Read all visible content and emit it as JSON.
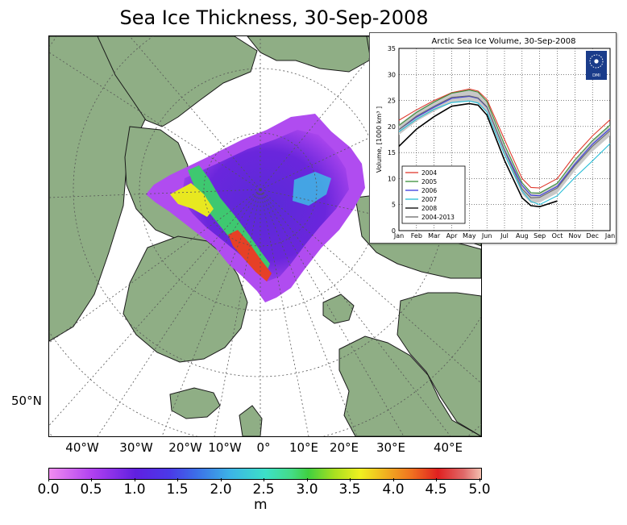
{
  "map": {
    "title": "Sea Ice Thickness, 30-Sep-2008",
    "lon_labels": [
      "40°W",
      "30°W",
      "20°W",
      "10°W",
      "0°",
      "10°E",
      "20°E",
      "30°E",
      "40°E"
    ],
    "lat_label": "50°N",
    "colors": {
      "land": "#8fae85",
      "ocean": "#ffffff",
      "grid": "#555555"
    }
  },
  "colorbar": {
    "ticks": [
      "0.0",
      "0.5",
      "1.0",
      "1.5",
      "2.0",
      "2.5",
      "3.0",
      "3.5",
      "4.0",
      "4.5",
      "5.0"
    ],
    "unit": "m"
  },
  "chart_data": {
    "type": "line",
    "title": "Arctic Sea Ice Volume, 30-Sep-2008",
    "ylabel": "Volume, [1000 km³ ]",
    "xlabel": "",
    "categories": [
      "Jan",
      "Feb",
      "Mar",
      "Apr",
      "May",
      "Jun",
      "Jul",
      "Aug",
      "Sep",
      "Oct",
      "Nov",
      "Dec",
      "Jan"
    ],
    "yticks": [
      "0",
      "5",
      "10",
      "15",
      "20",
      "25",
      "30",
      "35"
    ],
    "ylim": [
      0,
      35
    ],
    "x": [
      0,
      1,
      2,
      3,
      4,
      4.5,
      5,
      6,
      7,
      7.5,
      8,
      9,
      10,
      11,
      12
    ],
    "grid": true,
    "legend_position": "bottom-left",
    "logo_text": "DMI",
    "series": [
      {
        "name": "2004",
        "color": "#e03a2e",
        "values": [
          21.2,
          23.2,
          25.0,
          26.5,
          27.2,
          26.8,
          25.2,
          17.5,
          10.0,
          8.3,
          8.2,
          10.0,
          14.5,
          18.2,
          21.3
        ]
      },
      {
        "name": "2005",
        "color": "#3a8f3a",
        "values": [
          20.2,
          22.7,
          24.7,
          26.4,
          27.0,
          26.6,
          24.8,
          16.5,
          9.2,
          7.3,
          7.2,
          9.1,
          13.6,
          17.3,
          20.3
        ]
      },
      {
        "name": "2006",
        "color": "#3a3ae0",
        "values": [
          19.4,
          21.8,
          23.7,
          25.4,
          25.8,
          25.4,
          23.7,
          15.5,
          8.7,
          6.8,
          6.7,
          8.5,
          12.8,
          16.6,
          19.6
        ]
      },
      {
        "name": "2007",
        "color": "#22bcd6",
        "values": [
          19.0,
          21.4,
          23.3,
          24.6,
          24.9,
          24.5,
          22.8,
          14.6,
          7.6,
          5.6,
          5.0,
          6.7,
          10.2,
          13.4,
          16.7
        ]
      },
      {
        "name": "2008",
        "color": "#000000",
        "values": [
          16.2,
          19.5,
          21.9,
          23.9,
          24.4,
          24.1,
          22.2,
          13.5,
          6.3,
          4.8,
          4.6,
          5.7,
          null,
          null,
          null
        ]
      },
      {
        "name": "2004-2013",
        "color": "#6a6a6a",
        "values": [
          19.4,
          22.0,
          23.9,
          25.6,
          25.9,
          25.5,
          23.8,
          15.4,
          8.0,
          6.3,
          6.4,
          8.2,
          12.5,
          16.2,
          19.2
        ]
      }
    ]
  }
}
